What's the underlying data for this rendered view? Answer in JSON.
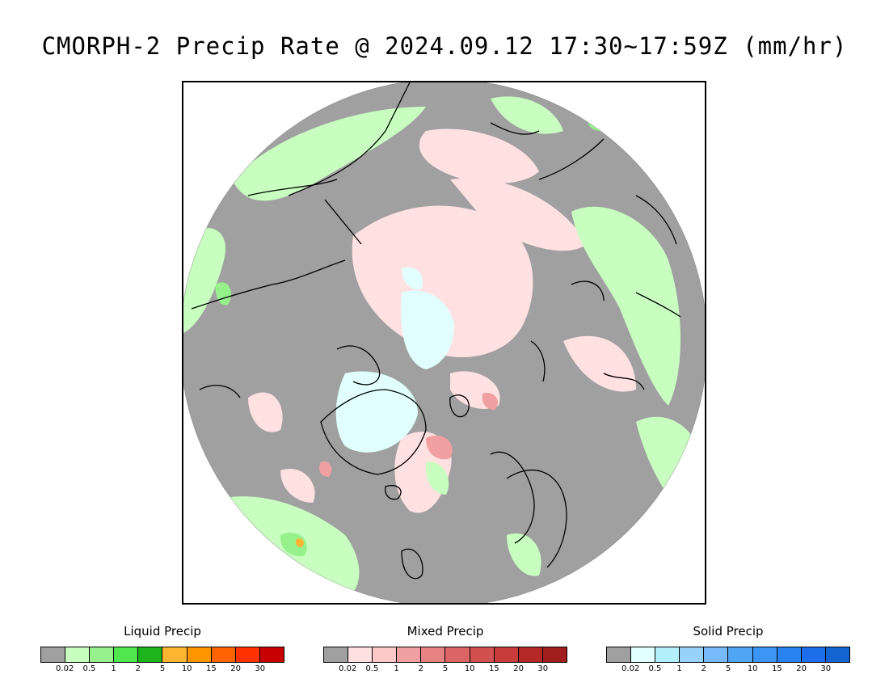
{
  "title": "CMORPH-2 Precip Rate @ 2024.09.12 17:30~17:59Z (mm/hr)",
  "legends": [
    {
      "title": "Liquid Precip",
      "colors": [
        "#a0a0a0",
        "#c8ffc0",
        "#96f08c",
        "#50e650",
        "#1eb41e",
        "#ffb432",
        "#ff9600",
        "#ff6400",
        "#ff3200",
        "#c80000"
      ],
      "ticks": [
        "0.02",
        "0.5",
        "1",
        "2",
        "5",
        "10",
        "15",
        "20",
        "30"
      ]
    },
    {
      "title": "Mixed Precip",
      "colors": [
        "#a0a0a0",
        "#ffe1e1",
        "#ffc8c8",
        "#f0a0a0",
        "#e68282",
        "#dc6464",
        "#d25050",
        "#c83c3c",
        "#b42828",
        "#a01e1e"
      ],
      "ticks": [
        "0.02",
        "0.5",
        "1",
        "2",
        "5",
        "10",
        "15",
        "20",
        "30"
      ]
    },
    {
      "title": "Solid Precip",
      "colors": [
        "#a0a0a0",
        "#e1ffff",
        "#b4f0fa",
        "#96d2fa",
        "#78b9fa",
        "#50a5f5",
        "#3c96f5",
        "#2882f0",
        "#1e6eeb",
        "#1464d2"
      ],
      "ticks": [
        "0.02",
        "0.5",
        "1",
        "2",
        "5",
        "10",
        "15",
        "20",
        "30"
      ]
    }
  ]
}
